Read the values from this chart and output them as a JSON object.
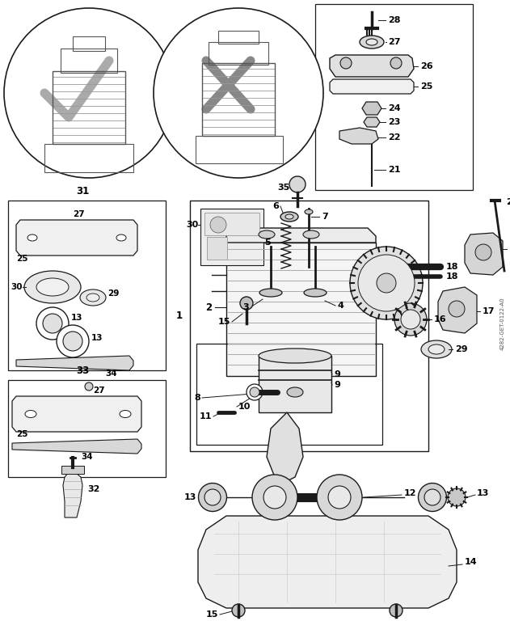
{
  "bg_color": "#ffffff",
  "line_color": "#1a1a1a",
  "fig_width": 6.31,
  "fig_height": 7.68,
  "dpi": 100,
  "watermark": "4282-GET-0122-A0"
}
